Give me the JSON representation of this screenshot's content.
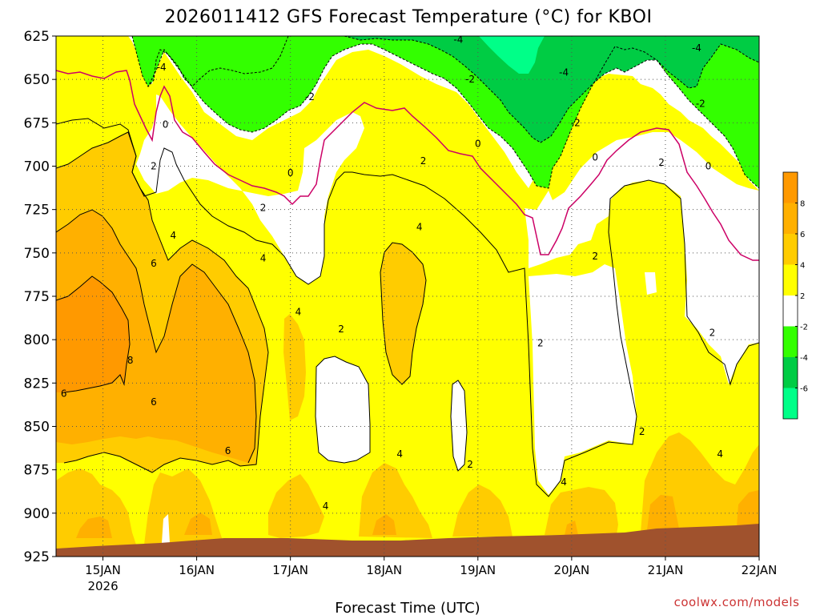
{
  "chart_data": {
    "type": "contour",
    "title": "2026011412 GFS Forecast Temperature (°C) for KBOI",
    "xlabel": "Forecast Time (UTC)",
    "ylabel": "",
    "credit": "coolwx.com/models",
    "y_axis": {
      "units": "hPa",
      "ticks": [
        625,
        650,
        675,
        700,
        725,
        750,
        775,
        800,
        825,
        850,
        875,
        900,
        925
      ],
      "ylim": [
        625,
        925
      ],
      "inverted": true
    },
    "x_axis": {
      "ticks": [
        {
          "label": "15JAN",
          "sublabel": "2026",
          "time": "2026-01-15T00"
        },
        {
          "label": "16JAN",
          "sublabel": "",
          "time": "2026-01-16T00"
        },
        {
          "label": "17JAN",
          "sublabel": "",
          "time": "2026-01-17T00"
        },
        {
          "label": "18JAN",
          "sublabel": "",
          "time": "2026-01-18T00"
        },
        {
          "label": "19JAN",
          "sublabel": "",
          "time": "2026-01-19T00"
        },
        {
          "label": "20JAN",
          "sublabel": "",
          "time": "2026-01-20T00"
        },
        {
          "label": "21JAN",
          "sublabel": "",
          "time": "2026-01-21T00"
        },
        {
          "label": "22JAN",
          "sublabel": "",
          "time": "2026-01-22T00"
        }
      ],
      "xlim": [
        "2026-01-14T12",
        "2026-01-22T00"
      ]
    },
    "colorbar": {
      "levels": [
        8,
        6,
        4,
        2,
        -2,
        -4,
        -6
      ],
      "labels": [
        "8",
        "6",
        "4",
        "2",
        "-2",
        "-4",
        "-6"
      ],
      "colors": {
        "gt8": "#ff9900",
        "6to8": "#ffb000",
        "4to6": "#ffcc00",
        "2to4": "#ffff00",
        "m2to2": "#ffffff",
        "m4tom2": "#33ff00",
        "m6tom4": "#00cc44",
        "ltm6": "#00ff88"
      }
    },
    "contour_labels": [
      {
        "value": "-4",
        "time": "2026-01-18T19",
        "p": 627
      },
      {
        "value": "-4",
        "time": "2026-01-21T08",
        "p": 632
      },
      {
        "value": "-4",
        "time": "2026-01-15T15",
        "p": 643
      },
      {
        "value": "-4",
        "time": "2026-01-19T22",
        "p": 646
      },
      {
        "value": "-2",
        "time": "2026-01-17T05",
        "p": 660
      },
      {
        "value": "-2",
        "time": "2026-01-18T22",
        "p": 650
      },
      {
        "value": "-2",
        "time": "2026-01-21T09",
        "p": 664
      },
      {
        "value": "0",
        "time": "2026-01-15T16",
        "p": 676
      },
      {
        "value": "0",
        "time": "2026-01-19T00",
        "p": 687
      },
      {
        "value": "0",
        "time": "2026-01-20T06",
        "p": 695
      },
      {
        "value": "0",
        "time": "2026-01-17T00",
        "p": 704
      },
      {
        "value": "0",
        "time": "2026-01-21T11",
        "p": 700
      },
      {
        "value": "-2",
        "time": "2026-01-20T01",
        "p": 675
      },
      {
        "value": "2",
        "time": "2026-01-15T13",
        "p": 700
      },
      {
        "value": "2",
        "time": "2026-01-18T10",
        "p": 697
      },
      {
        "value": "2",
        "time": "2026-01-20T23",
        "p": 698
      },
      {
        "value": "2",
        "time": "2026-01-16T17",
        "p": 724
      },
      {
        "value": "2",
        "time": "2026-01-20T06",
        "p": 752
      },
      {
        "value": "2",
        "time": "2026-01-17T13",
        "p": 794
      },
      {
        "value": "2",
        "time": "2026-01-19T16",
        "p": 802
      },
      {
        "value": "2",
        "time": "2026-01-21T12",
        "p": 796
      },
      {
        "value": "2",
        "time": "2026-01-20T18",
        "p": 853
      },
      {
        "value": "2",
        "time": "2026-01-18T22",
        "p": 872
      },
      {
        "value": "4",
        "time": "2026-01-15T18",
        "p": 740
      },
      {
        "value": "4",
        "time": "2026-01-16T17",
        "p": 753
      },
      {
        "value": "4",
        "time": "2026-01-17T02",
        "p": 784
      },
      {
        "value": "4",
        "time": "2026-01-18T09",
        "p": 735
      },
      {
        "value": "4",
        "time": "2026-01-18T04",
        "p": 866
      },
      {
        "value": "4",
        "time": "2026-01-19T22",
        "p": 882
      },
      {
        "value": "4",
        "time": "2026-01-17T09",
        "p": 896
      },
      {
        "value": "4",
        "time": "2026-01-21T14",
        "p": 866
      },
      {
        "value": "6",
        "time": "2026-01-15T13",
        "p": 756
      },
      {
        "value": "6",
        "time": "2026-01-14T14",
        "p": 831
      },
      {
        "value": "6",
        "time": "2026-01-15T13",
        "p": 836
      },
      {
        "value": "6",
        "time": "2026-01-16T08",
        "p": 864
      },
      {
        "value": "8",
        "time": "2026-01-15T07",
        "p": 812
      }
    ]
  }
}
